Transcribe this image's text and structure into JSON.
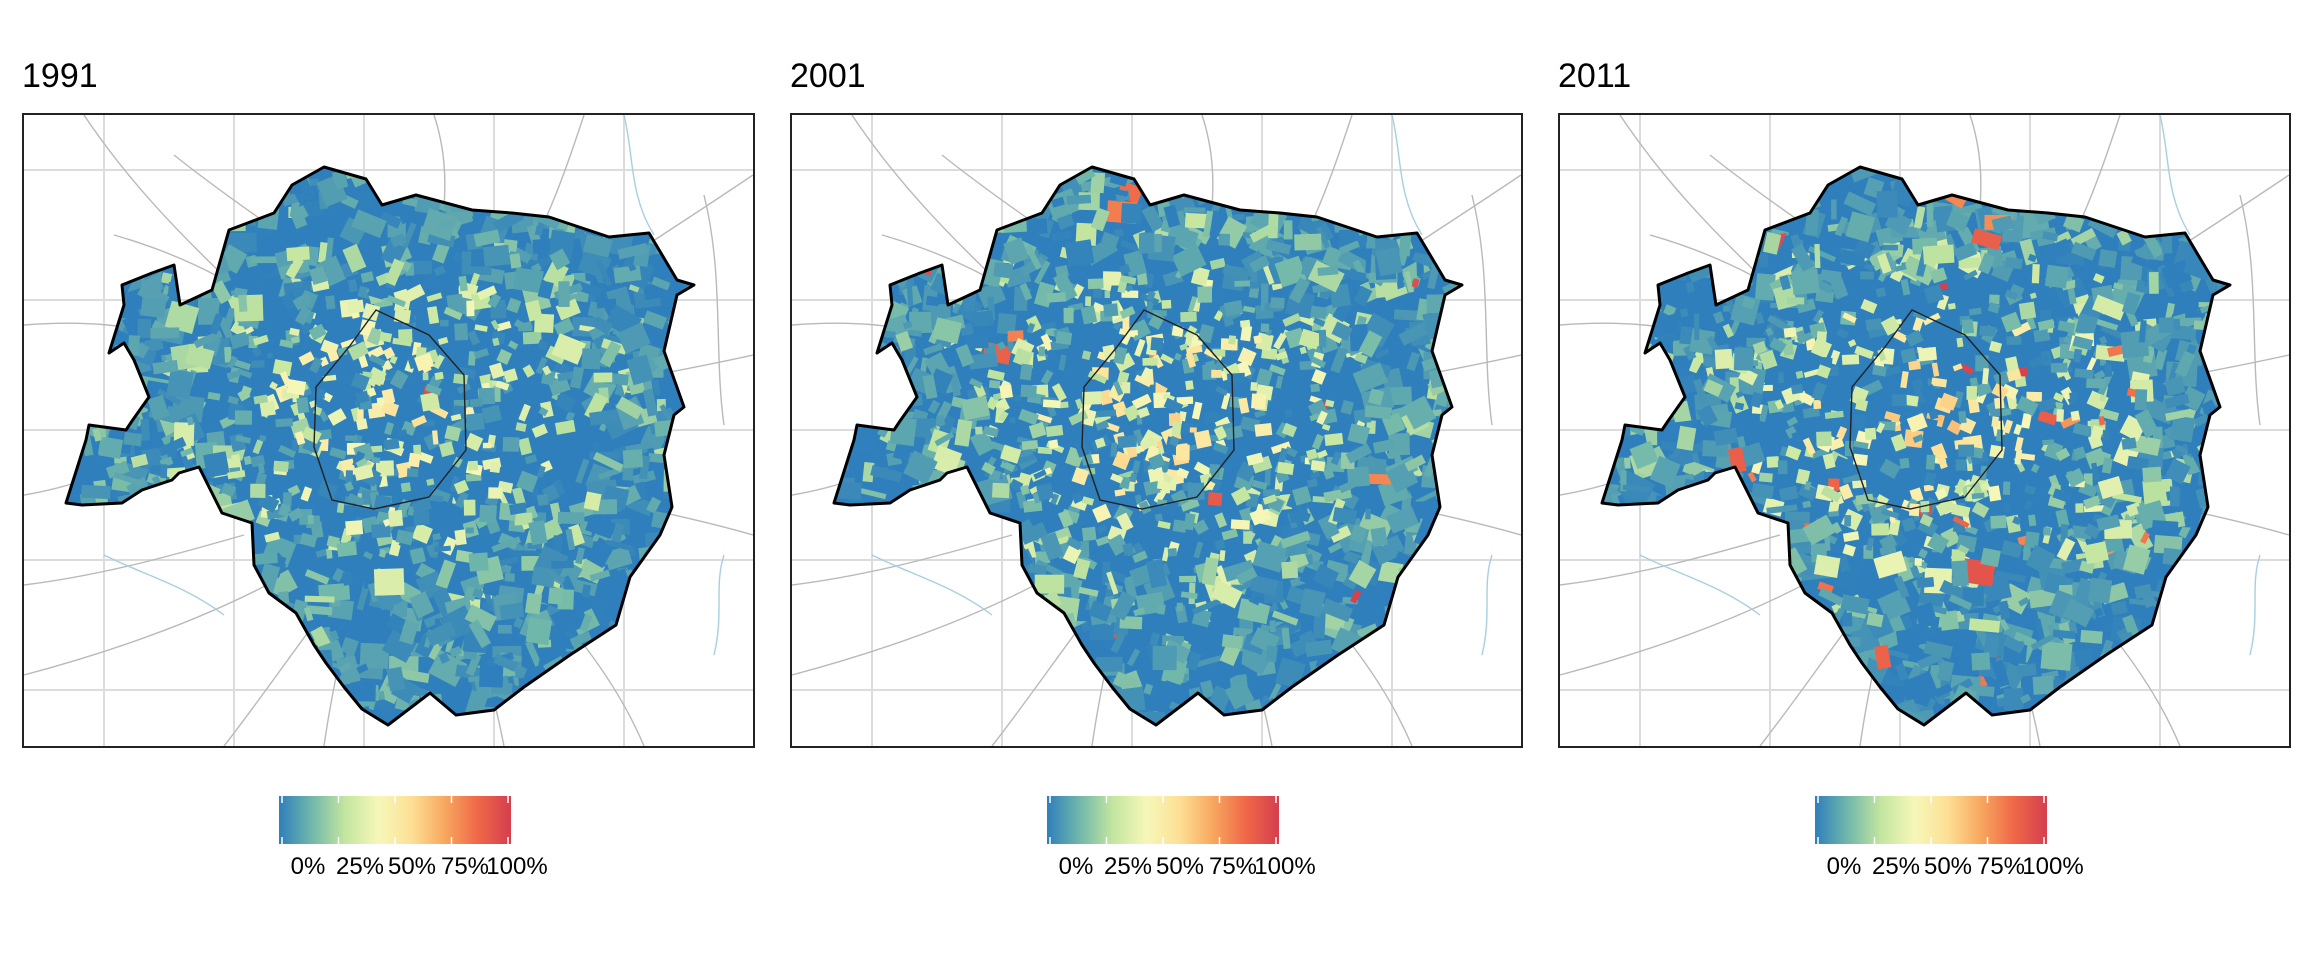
{
  "panels": [
    {
      "year": "1991",
      "seed": 11,
      "share": 0.3,
      "hot": 0.004
    },
    {
      "year": "2001",
      "seed": 23,
      "share": 0.38,
      "hot": 0.012
    },
    {
      "year": "2011",
      "seed": 37,
      "share": 0.44,
      "hot": 0.022
    }
  ],
  "legend": {
    "labels": [
      "0%",
      "25%",
      "50%",
      "75%",
      "100%"
    ],
    "values": [
      0,
      0.25,
      0.5,
      0.75,
      1
    ]
  },
  "palette": {
    "stops": [
      "#2e7fbc",
      "#72b8aa",
      "#c4e6a0",
      "#f6f7b8",
      "#fde096",
      "#f7a85f",
      "#ef6848",
      "#d53e4f"
    ],
    "boundary": "#000000",
    "roads": "#b9b9b9",
    "grid": "#dcdcdc",
    "water": "#a7cfe0"
  }
}
